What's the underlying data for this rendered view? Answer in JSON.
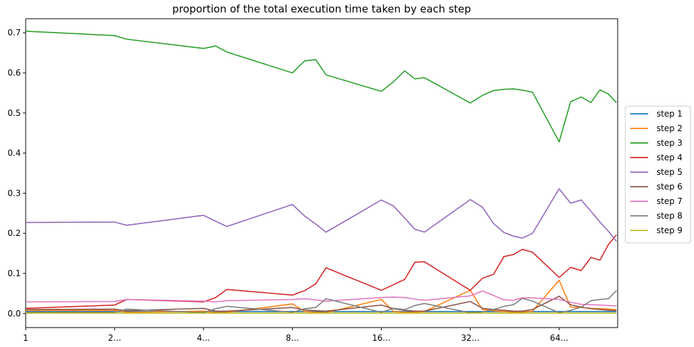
{
  "chart_data": {
    "type": "line",
    "title": "proportion of the total execution time taken by each step",
    "xlabel": "",
    "ylabel": "",
    "x_scale": "log2",
    "xlim": [
      1,
      101
    ],
    "ylim": [
      -0.035,
      0.735
    ],
    "xticks": [
      {
        "value": 1,
        "label": "1"
      },
      {
        "value": 2,
        "label": "2..."
      },
      {
        "value": 4,
        "label": "4..."
      },
      {
        "value": 8,
        "label": "8..."
      },
      {
        "value": 16,
        "label": "16..."
      },
      {
        "value": 32,
        "label": "32..."
      },
      {
        "value": 64,
        "label": "64..."
      }
    ],
    "yticks": [
      {
        "value": 0.0,
        "label": "0.0"
      },
      {
        "value": 0.1,
        "label": "0.1"
      },
      {
        "value": 0.2,
        "label": "0.2"
      },
      {
        "value": 0.3,
        "label": "0.3"
      },
      {
        "value": 0.4,
        "label": "0.4"
      },
      {
        "value": 0.5,
        "label": "0.5"
      },
      {
        "value": 0.6,
        "label": "0.6"
      },
      {
        "value": 0.7,
        "label": "0.7"
      }
    ],
    "grid": false,
    "legend_position": "right-center",
    "x": [
      1,
      2,
      2.2,
      4,
      4.4,
      4.8,
      8,
      8.8,
      9.6,
      10.4,
      16,
      17.6,
      19.2,
      20.8,
      22.4,
      32,
      35.2,
      38.4,
      41.6,
      44.8,
      48,
      52,
      64,
      70,
      76,
      82,
      88,
      94,
      100
    ],
    "series": [
      {
        "name": "step 1",
        "color": "#1f77b4",
        "values": [
          0.005,
          0.005,
          0.005,
          0.005,
          0.005,
          0.005,
          0.005,
          0.005,
          0.005,
          0.005,
          0.005,
          0.005,
          0.005,
          0.005,
          0.005,
          0.005,
          0.005,
          0.005,
          0.005,
          0.005,
          0.005,
          0.005,
          0.005,
          0.005,
          0.005,
          0.005,
          0.005,
          0.005,
          0.005
        ]
      },
      {
        "name": "step 2",
        "color": "#ff7f0e",
        "values": [
          0.008,
          0.008,
          0.003,
          0.006,
          0.002,
          0.003,
          0.024,
          0.005,
          0.003,
          0.002,
          0.035,
          0.005,
          0.003,
          0.003,
          0.005,
          0.058,
          0.01,
          0.007,
          0.005,
          0.003,
          0.003,
          0.006,
          0.083,
          0.016,
          0.015,
          0.013,
          0.012,
          0.011,
          0.01
        ]
      },
      {
        "name": "step 3",
        "color": "#2ca02c",
        "values": [
          0.704,
          0.693,
          0.684,
          0.661,
          0.667,
          0.652,
          0.6,
          0.63,
          0.633,
          0.595,
          0.554,
          0.578,
          0.605,
          0.585,
          0.588,
          0.525,
          0.544,
          0.556,
          0.559,
          0.56,
          0.557,
          0.552,
          0.428,
          0.528,
          0.54,
          0.526,
          0.558,
          0.547,
          0.526
        ]
      },
      {
        "name": "step 4",
        "color": "#d62728",
        "values": [
          0.013,
          0.021,
          0.035,
          0.029,
          0.04,
          0.06,
          0.046,
          0.057,
          0.074,
          0.114,
          0.058,
          0.072,
          0.085,
          0.128,
          0.129,
          0.058,
          0.088,
          0.098,
          0.142,
          0.147,
          0.16,
          0.153,
          0.09,
          0.115,
          0.107,
          0.14,
          0.133,
          0.172,
          0.196
        ]
      },
      {
        "name": "step 5",
        "color": "#9467bd",
        "values": [
          0.227,
          0.228,
          0.22,
          0.245,
          0.23,
          0.217,
          0.272,
          0.243,
          0.223,
          0.203,
          0.283,
          0.268,
          0.238,
          0.21,
          0.203,
          0.284,
          0.265,
          0.224,
          0.202,
          0.193,
          0.188,
          0.2,
          0.311,
          0.275,
          0.283,
          0.255,
          0.228,
          0.205,
          0.18
        ]
      },
      {
        "name": "step 6",
        "color": "#8c564b",
        "values": [
          0.01,
          0.011,
          0.007,
          0.013,
          0.006,
          0.006,
          0.015,
          0.009,
          0.007,
          0.006,
          0.021,
          0.012,
          0.008,
          0.006,
          0.006,
          0.03,
          0.013,
          0.01,
          0.008,
          0.006,
          0.006,
          0.01,
          0.043,
          0.022,
          0.016,
          0.012,
          0.01,
          0.008,
          0.007
        ]
      },
      {
        "name": "step 7",
        "color": "#e377c2",
        "values": [
          0.029,
          0.03,
          0.035,
          0.031,
          0.029,
          0.032,
          0.035,
          0.037,
          0.034,
          0.031,
          0.04,
          0.041,
          0.04,
          0.036,
          0.033,
          0.044,
          0.056,
          0.045,
          0.034,
          0.033,
          0.039,
          0.039,
          0.035,
          0.028,
          0.023,
          0.022,
          0.021,
          0.02,
          0.019
        ]
      },
      {
        "name": "step 8",
        "color": "#7f7f7f",
        "values": [
          0.003,
          0.003,
          0.011,
          0.002,
          0.012,
          0.018,
          0.003,
          0.012,
          0.015,
          0.037,
          0.003,
          0.013,
          0.01,
          0.02,
          0.025,
          0.002,
          0.004,
          0.01,
          0.018,
          0.022,
          0.038,
          0.031,
          0.002,
          0.008,
          0.016,
          0.032,
          0.035,
          0.037,
          0.057
        ]
      },
      {
        "name": "step 9",
        "color": "#bcbd22",
        "values": [
          0.001,
          0.001,
          0.001,
          0.001,
          0.001,
          0.001,
          0.001,
          0.001,
          0.001,
          0.001,
          0.001,
          0.001,
          0.001,
          0.001,
          0.001,
          0.001,
          0.001,
          0.001,
          0.001,
          0.001,
          0.001,
          0.001,
          0.001,
          0.001,
          0.001,
          0.001,
          0.001,
          0.001,
          0.001
        ]
      }
    ]
  }
}
